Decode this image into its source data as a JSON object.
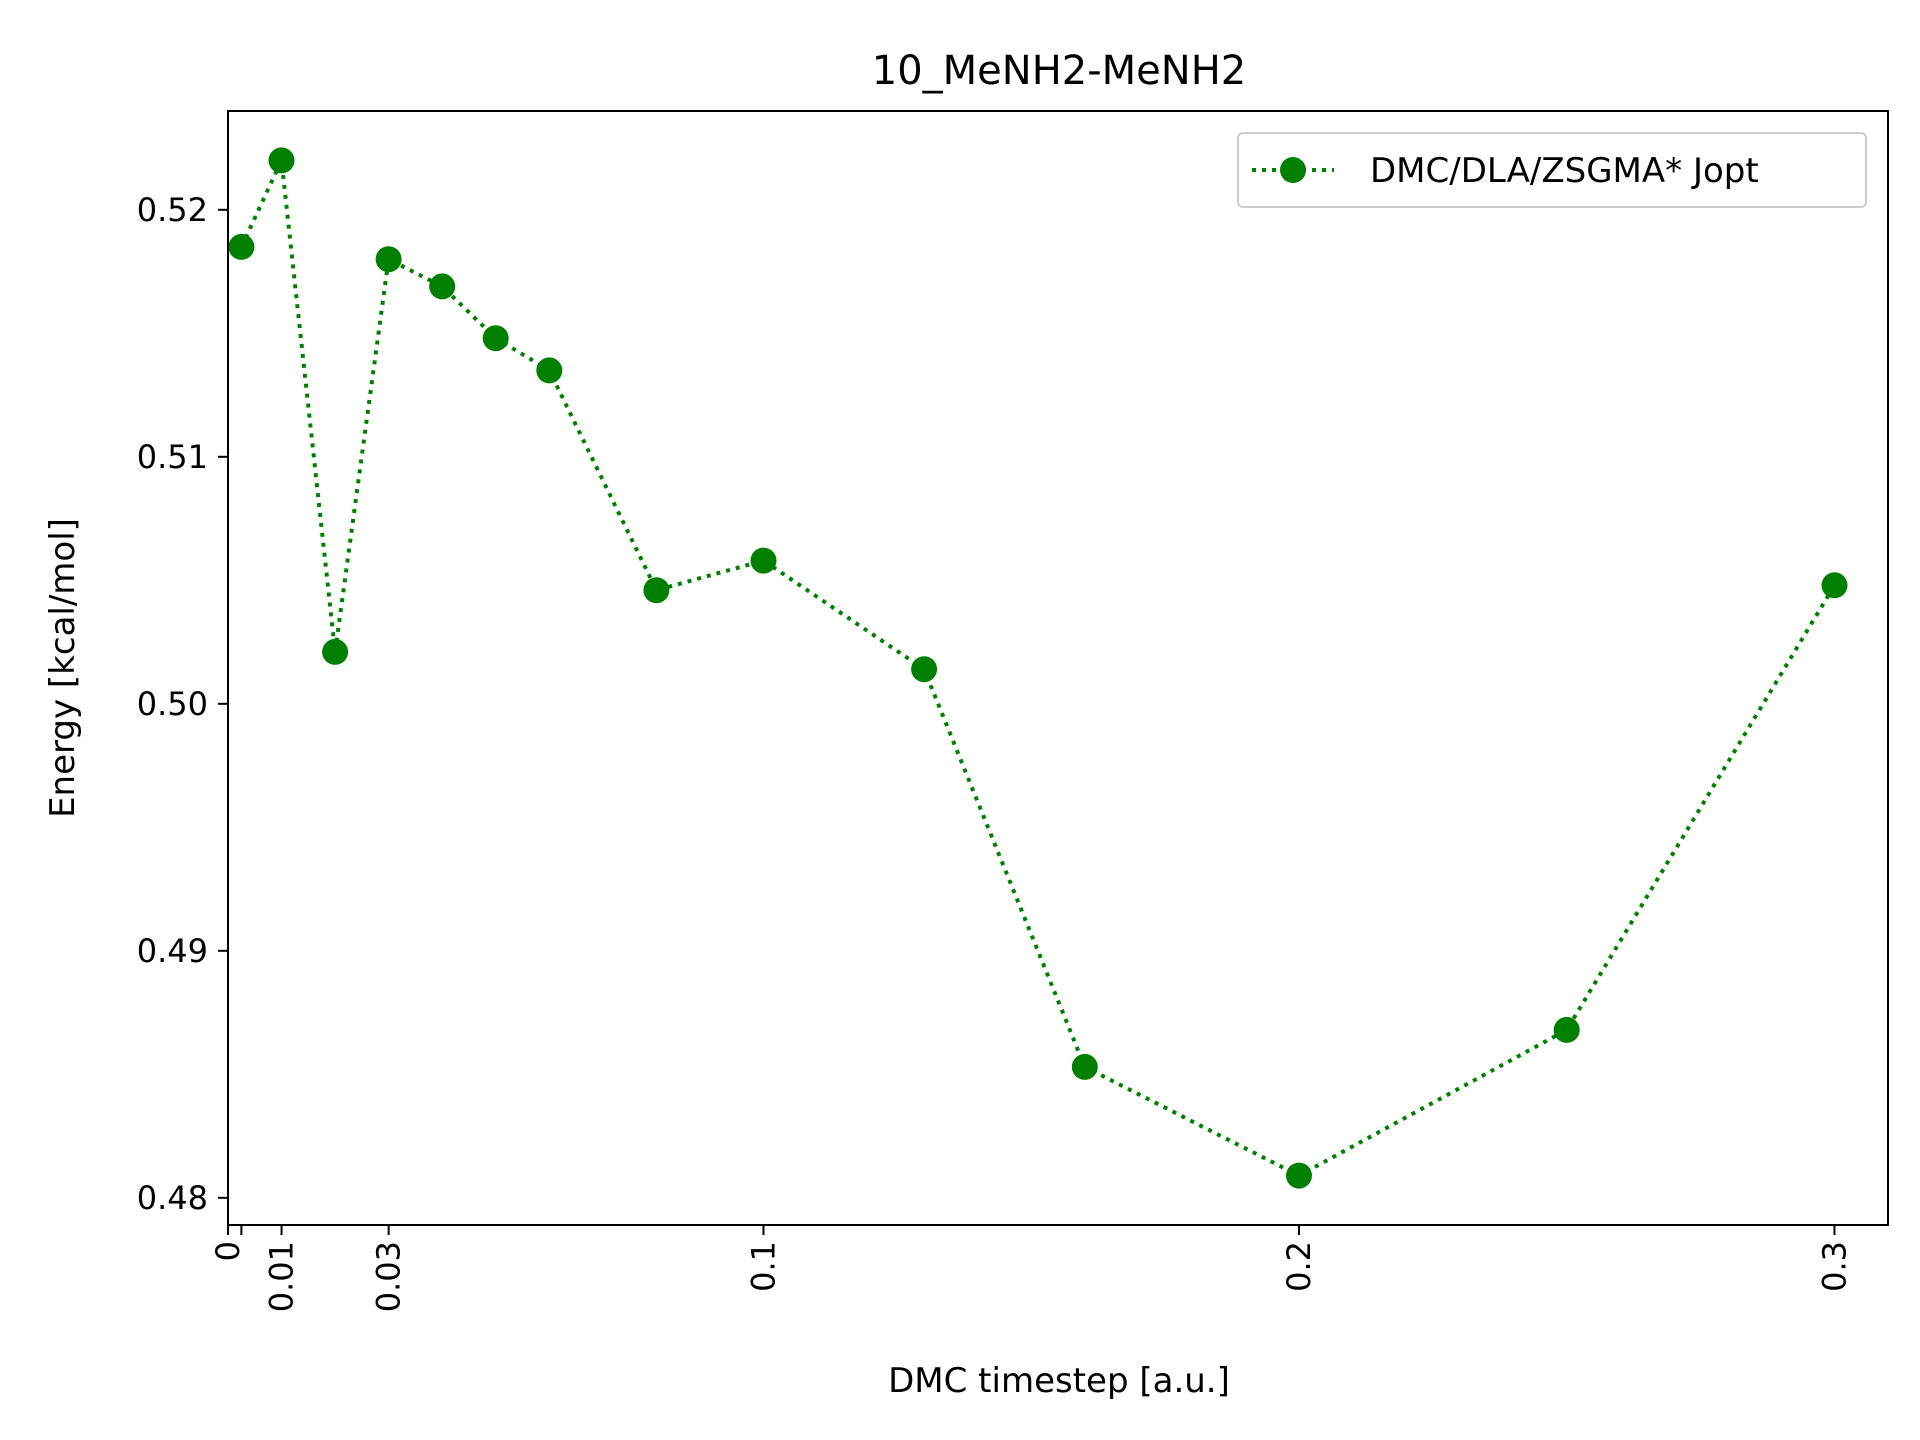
{
  "chart_data": {
    "type": "line",
    "title": "10_MeNH2-MeNH2",
    "xlabel": "DMC timestep [a.u.]",
    "ylabel": "Energy [kcal/mol]",
    "xlim": [
      0,
      0.31
    ],
    "ylim": [
      0.4789,
      0.524
    ],
    "x_ticks": [
      0,
      0.0025,
      0.01,
      0.03,
      0.1,
      0.2,
      0.3
    ],
    "x_tick_labels": [
      "0",
      "",
      "0.01",
      "0.03",
      "0.1",
      "0.2",
      "0.3"
    ],
    "y_ticks": [
      0.48,
      0.49,
      0.5,
      0.51,
      0.52
    ],
    "y_tick_labels": [
      "0.48",
      "0.49",
      "0.50",
      "0.51",
      "0.52"
    ],
    "legend_position": "top-right",
    "grid": false,
    "series": [
      {
        "name": "DMC/DLA/ZSGMA* Jopt",
        "color": "#008000",
        "line_style": "dotted",
        "marker": "circle",
        "points": [
          {
            "x": 0.0025,
            "y": 0.5185
          },
          {
            "x": 0.01,
            "y": 0.522
          },
          {
            "x": 0.02,
            "y": 0.5021
          },
          {
            "x": 0.03,
            "y": 0.518
          },
          {
            "x": 0.04,
            "y": 0.5169
          },
          {
            "x": 0.05,
            "y": 0.5148
          },
          {
            "x": 0.06,
            "y": 0.5135
          },
          {
            "x": 0.08,
            "y": 0.5046
          },
          {
            "x": 0.1,
            "y": 0.5058
          },
          {
            "x": 0.13,
            "y": 0.5014
          },
          {
            "x": 0.16,
            "y": 0.4853
          },
          {
            "x": 0.2,
            "y": 0.4809
          },
          {
            "x": 0.25,
            "y": 0.4868
          },
          {
            "x": 0.3,
            "y": 0.5048
          }
        ]
      }
    ]
  }
}
